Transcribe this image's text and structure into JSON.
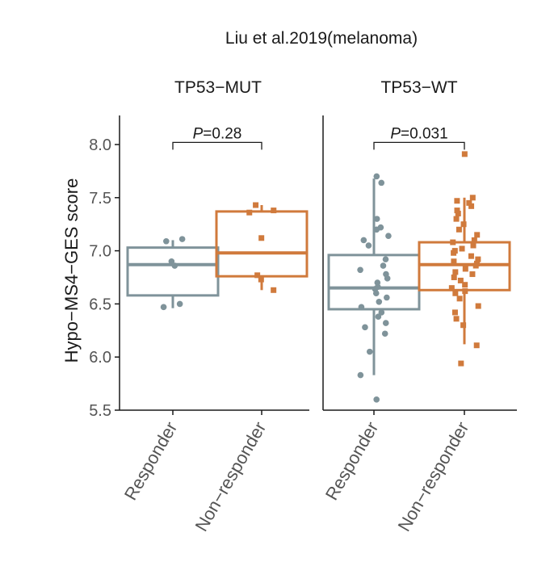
{
  "chart_data": {
    "type": "box",
    "title": "Liu et al.2019(melanoma)",
    "ylabel": "Hypo−MS4−GES score",
    "ylim": [
      5.5,
      8.25
    ],
    "yticks": [
      5.5,
      6.0,
      6.5,
      7.0,
      7.5,
      8.0
    ],
    "ytick_labels": [
      "5.5",
      "6.0",
      "6.5",
      "7.0",
      "7.5",
      "8.0"
    ],
    "colors": {
      "Responder": "#7f939a",
      "Non-responder": "#d07a3c"
    },
    "panels": [
      {
        "name": "TP53−MUT",
        "p_label_prefix": "P",
        "p_label_value": "=0.28",
        "bracket_y": 8.02,
        "groups": [
          {
            "label": "Responder",
            "color_key": "Responder",
            "marker": "circle",
            "q1": 6.58,
            "median": 6.87,
            "q3": 7.03,
            "lower": 6.46,
            "upper": 7.1,
            "points": [
              6.47,
              6.5,
              6.86,
              6.9,
              7.09,
              7.11
            ]
          },
          {
            "label": "Non−responder",
            "color_key": "Non-responder",
            "marker": "square",
            "q1": 6.76,
            "median": 6.98,
            "q3": 7.37,
            "lower": 6.63,
            "upper": 7.43,
            "points": [
              6.63,
              6.73,
              6.77,
              7.12,
              7.36,
              7.38,
              7.43
            ]
          }
        ]
      },
      {
        "name": "TP53−WT",
        "p_label_prefix": "P",
        "p_label_value": "=0.031",
        "bracket_y": 8.02,
        "groups": [
          {
            "label": "Responder",
            "color_key": "Responder",
            "marker": "circle",
            "q1": 6.45,
            "median": 6.65,
            "q3": 6.96,
            "lower": 5.83,
            "upper": 7.68,
            "points": [
              5.6,
              5.83,
              6.05,
              6.22,
              6.28,
              6.32,
              6.38,
              6.42,
              6.47,
              6.52,
              6.56,
              6.6,
              6.64,
              6.66,
              6.7,
              6.74,
              6.78,
              6.82,
              6.86,
              6.92,
              7.05,
              7.1,
              7.14,
              7.2,
              7.22,
              7.3,
              7.64,
              7.7
            ]
          },
          {
            "label": "Non−responder",
            "color_key": "Non-responder",
            "marker": "square",
            "q1": 6.63,
            "median": 6.87,
            "q3": 7.08,
            "lower": 6.12,
            "upper": 7.5,
            "points": [
              5.94,
              6.11,
              6.3,
              6.36,
              6.42,
              6.48,
              6.55,
              6.6,
              6.62,
              6.65,
              6.68,
              6.72,
              6.75,
              6.78,
              6.8,
              6.83,
              6.86,
              6.88,
              6.9,
              6.92,
              6.95,
              6.98,
              7.0,
              7.02,
              7.05,
              7.08,
              7.1,
              7.15,
              7.2,
              7.25,
              7.3,
              7.35,
              7.38,
              7.42,
              7.45,
              7.47,
              7.5,
              7.91
            ]
          }
        ]
      }
    ]
  }
}
